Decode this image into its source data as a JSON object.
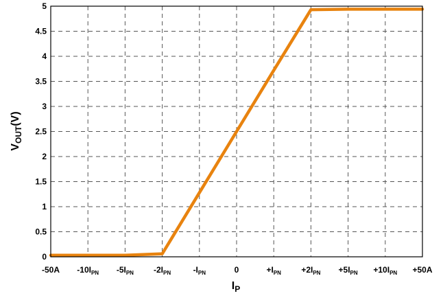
{
  "chart_data": {
    "type": "line",
    "title": "",
    "ylabel": {
      "main": "V",
      "sub": "OUT",
      "suffix": "(V)"
    },
    "xlabel": {
      "main": "I",
      "sub": "P"
    },
    "ylim": [
      0,
      5
    ],
    "y_ticks": [
      "0",
      "0.5",
      "1",
      "1.5",
      "2",
      "2.5",
      "3",
      "3.5",
      "4",
      "4.5",
      "5"
    ],
    "x_categories": [
      {
        "main": "-50A",
        "sub": ""
      },
      {
        "main": "-10I",
        "sub": "PN"
      },
      {
        "main": "-5I",
        "sub": "PN"
      },
      {
        "main": "-2I",
        "sub": "PN"
      },
      {
        "main": "-I",
        "sub": "PN"
      },
      {
        "main": "0",
        "sub": ""
      },
      {
        "main": "+I",
        "sub": "PN"
      },
      {
        "main": "+2I",
        "sub": "PN"
      },
      {
        "main": "+5I",
        "sub": "PN"
      },
      {
        "main": "+10I",
        "sub": "PN"
      },
      {
        "main": "+50A",
        "sub": ""
      }
    ],
    "grid": true,
    "series": [
      {
        "color": "#e8830f",
        "points": [
          {
            "x": 0,
            "y": 0.03
          },
          {
            "x": 1,
            "y": 0.03
          },
          {
            "x": 2,
            "y": 0.03
          },
          {
            "x": 3,
            "y": 0.06
          },
          {
            "x": 4,
            "y": 1.28
          },
          {
            "x": 5,
            "y": 2.5
          },
          {
            "x": 6,
            "y": 3.72
          },
          {
            "x": 7,
            "y": 4.93
          },
          {
            "x": 8,
            "y": 4.94
          },
          {
            "x": 9,
            "y": 4.94
          },
          {
            "x": 10,
            "y": 4.94
          }
        ]
      }
    ]
  }
}
